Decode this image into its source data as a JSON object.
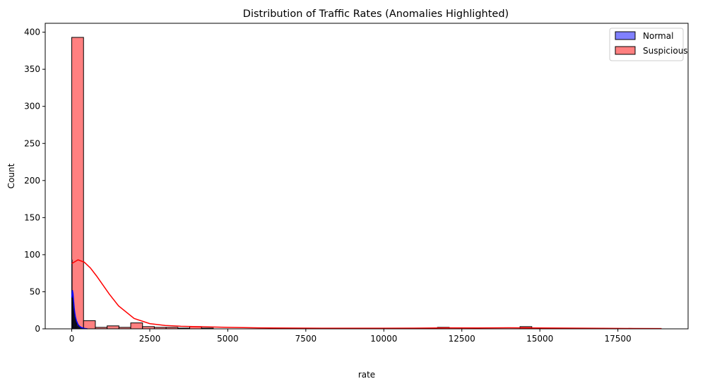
{
  "chart_data": {
    "type": "histogram",
    "title": "Distribution of Traffic Rates (Anomalies Highlighted)",
    "xlabel": "rate",
    "ylabel": "Count",
    "xlim": [
      -850,
      19750
    ],
    "ylim": [
      0,
      412
    ],
    "xticks": [
      0,
      2500,
      5000,
      7500,
      10000,
      12500,
      15000,
      17500
    ],
    "xtick_labels": [
      "0",
      "2500",
      "5000",
      "7500",
      "10000",
      "12500",
      "15000",
      "17500"
    ],
    "yticks": [
      0,
      50,
      100,
      150,
      200,
      250,
      300,
      350,
      400
    ],
    "ytick_labels": [
      "0",
      "50",
      "100",
      "150",
      "200",
      "250",
      "300",
      "350",
      "400"
    ],
    "grid": false,
    "legend_position": "top-right",
    "series": [
      {
        "name": "Normal",
        "color": "#0000ff",
        "fill_color": "#8080ff",
        "bin_edges": [
          0,
          15,
          30,
          45,
          60,
          75,
          90,
          105,
          120,
          135,
          150,
          165,
          180,
          195,
          210,
          225,
          240,
          255,
          270,
          285,
          300,
          315,
          330,
          345,
          360,
          375,
          390
        ],
        "counts": [
          93,
          52,
          44,
          36,
          30,
          24,
          20,
          16,
          13,
          10,
          8,
          7,
          5,
          4,
          4,
          3,
          2,
          2,
          2,
          1,
          1,
          1,
          1,
          1,
          1,
          0
        ],
        "kde": {
          "x": [
            0,
            20,
            40,
            60,
            80,
            100,
            120,
            150,
            200,
            250,
            300,
            350,
            400,
            450,
            500
          ],
          "y": [
            42,
            52,
            48,
            38,
            28,
            21,
            16,
            11,
            6,
            3.5,
            2,
            1.2,
            0.7,
            0.3,
            0.1
          ]
        }
      },
      {
        "name": "Suspicious",
        "color": "#ff0000",
        "fill_color": "#ff8080",
        "bin_edges": [
          0,
          378,
          756,
          1134,
          1512,
          1890,
          2268,
          2646,
          3024,
          3402,
          3780,
          4158,
          4536,
          4914,
          5292,
          5670,
          6048,
          6426,
          6804,
          7182,
          7560,
          7938,
          8316,
          8694,
          9072,
          9450,
          9828,
          10206,
          10584,
          10962,
          11340,
          11718,
          12096,
          12474,
          12852,
          13230,
          13608,
          13986,
          14364,
          14742,
          15120,
          15498,
          15876,
          16254,
          16632,
          17010,
          17388,
          17766,
          18144,
          18522,
          18900
        ],
        "counts": [
          393,
          11,
          2,
          4,
          2,
          8,
          3,
          2,
          2,
          1,
          3,
          1,
          0,
          0,
          0,
          0,
          0,
          0,
          0,
          0,
          0,
          0,
          0,
          0,
          0,
          0,
          0,
          0,
          0,
          0,
          0,
          2,
          0,
          0,
          0,
          0,
          0,
          0,
          3,
          0,
          0,
          0,
          0,
          0,
          0,
          0,
          0,
          0,
          0,
          0
        ],
        "kde": {
          "x": [
            0,
            200,
            400,
            600,
            800,
            1000,
            1200,
            1500,
            2000,
            2500,
            3000,
            3500,
            4000,
            5000,
            6000,
            8000,
            10000,
            11000,
            12000,
            13000,
            14000,
            15000,
            16000,
            17000,
            18000,
            18900
          ],
          "y": [
            88,
            93,
            90,
            82,
            71,
            59,
            47,
            31,
            14,
            7,
            4.5,
            3.5,
            3,
            2,
            1.3,
            0.8,
            0.8,
            1,
            1.3,
            1.2,
            1.4,
            1.2,
            0.9,
            0.7,
            0.5,
            0.4
          ]
        }
      }
    ]
  }
}
